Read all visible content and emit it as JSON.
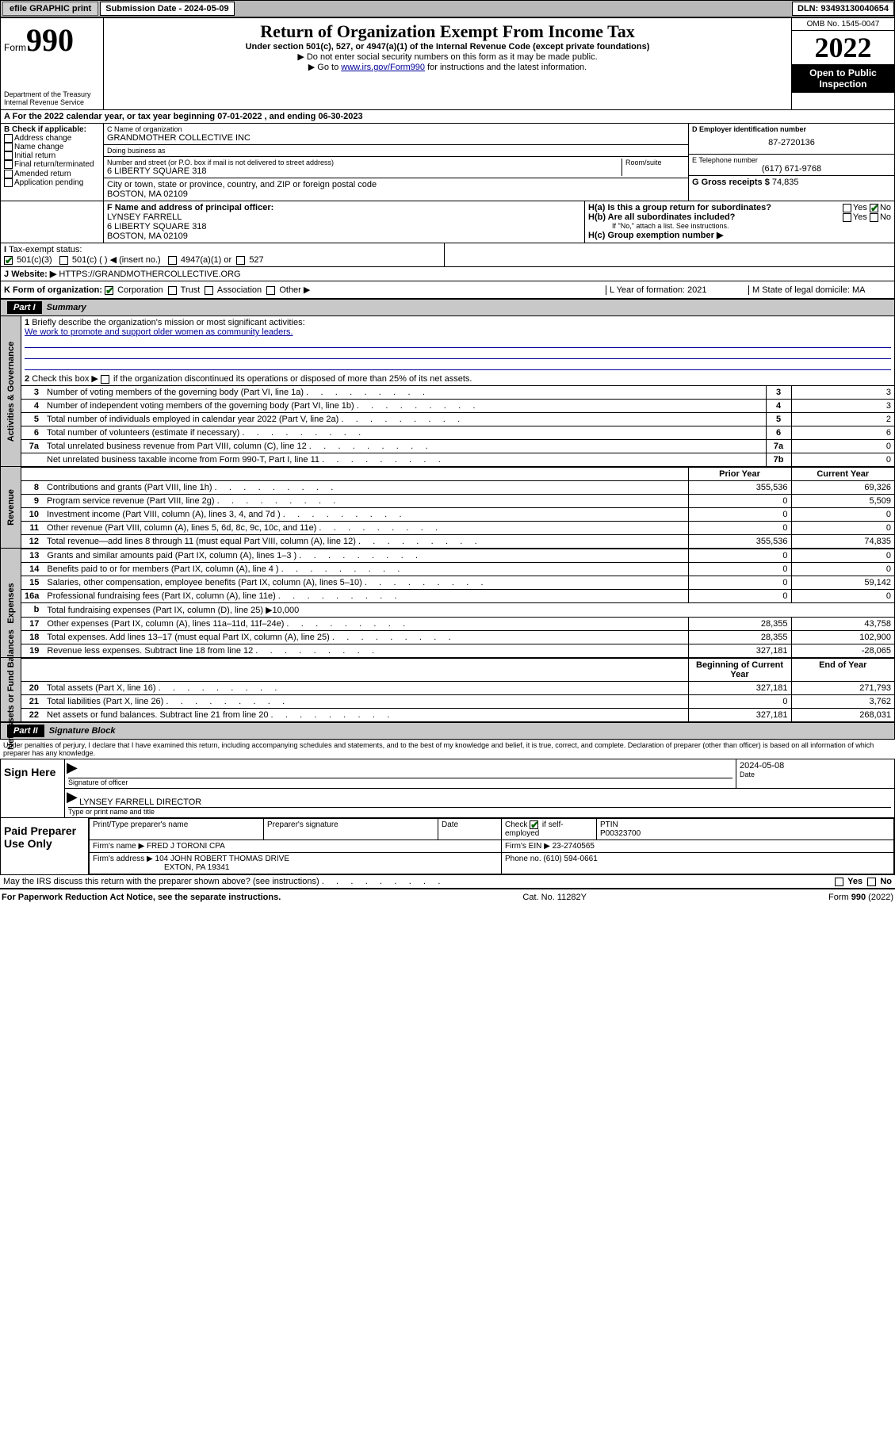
{
  "topbar": {
    "efile": "efile GRAPHIC print",
    "subdate_lbl": "Submission Date - 2024-05-09",
    "dln": "DLN: 93493130040654"
  },
  "header": {
    "form_word": "Form",
    "form_num": "990",
    "dept": "Department of the Treasury Internal Revenue Service",
    "title": "Return of Organization Exempt From Income Tax",
    "sub": "Under section 501(c), 527, or 4947(a)(1) of the Internal Revenue Code (except private foundations)",
    "note1": "▶ Do not enter social security numbers on this form as it may be made public.",
    "note2_pre": "▶ Go to ",
    "note2_link": "www.irs.gov/Form990",
    "note2_post": " for instructions and the latest information.",
    "omb": "OMB No. 1545-0047",
    "year": "2022",
    "open": "Open to Public Inspection"
  },
  "line_a": "For the 2022 calendar year, or tax year beginning 07-01-2022     , and ending 06-30-2023",
  "col_b": {
    "hdr": "B Check if applicable:",
    "items": [
      "Address change",
      "Name change",
      "Initial return",
      "Final return/terminated",
      "Amended return",
      "Application pending"
    ]
  },
  "col_c": {
    "name_lbl": "C Name of organization",
    "name": "GRANDMOTHER COLLECTIVE INC",
    "dba_lbl": "Doing business as",
    "dba": "",
    "street_lbl": "Number and street (or P.O. box if mail is not delivered to street address)",
    "room_lbl": "Room/suite",
    "street": "6 LIBERTY SQUARE 318",
    "city_lbl": "City or town, state or province, country, and ZIP or foreign postal code",
    "city": "BOSTON, MA  02109"
  },
  "col_d": {
    "ein_lbl": "D Employer identification number",
    "ein": "87-2720136",
    "phone_lbl": "E Telephone number",
    "phone": "(617) 671-9768",
    "gross_lbl": "G Gross receipts $",
    "gross": "74,835"
  },
  "line_f": {
    "lbl": "F  Name and address of principal officer:",
    "name": "LYNSEY FARRELL",
    "addr1": "6 LIBERTY SQUARE 318",
    "addr2": "BOSTON, MA  02109"
  },
  "line_h": {
    "ha": "H(a)  Is this a group return for subordinates?",
    "hb": "H(b)  Are all subordinates included?",
    "hb_note": "If \"No,\" attach a list. See instructions.",
    "hc": "H(c)  Group exemption number ▶",
    "yes": "Yes",
    "no": "No"
  },
  "line_i": {
    "lbl": "Tax-exempt status:",
    "c3": "501(c)(3)",
    "c": "501(c) (   ) ◀ (insert no.)",
    "a1": "4947(a)(1) or",
    "s527": "527"
  },
  "line_j": {
    "lbl": "Website: ▶",
    "val": "HTTPS://GRANDMOTHERCOLLECTIVE.ORG"
  },
  "line_k": {
    "lbl": "K Form of organization:",
    "corp": "Corporation",
    "trust": "Trust",
    "assoc": "Association",
    "other": "Other ▶"
  },
  "line_l": {
    "lbl": "L Year of formation: 2021"
  },
  "line_m": {
    "lbl": "M State of legal domicile: MA"
  },
  "part1": {
    "hdr": "Part I",
    "title": "Summary",
    "q1": "Briefly describe the organization's mission or most significant activities:",
    "mission": "We work to promote and support older women as community leaders.",
    "q2": "Check this box ▶",
    "q2b": "if the organization discontinued its operations or disposed of more than 25% of its net assets.",
    "rows_gov": [
      {
        "n": "3",
        "t": "Number of voting members of the governing body (Part VI, line 1a)",
        "l": "3",
        "v": "3"
      },
      {
        "n": "4",
        "t": "Number of independent voting members of the governing body (Part VI, line 1b)",
        "l": "4",
        "v": "3"
      },
      {
        "n": "5",
        "t": "Total number of individuals employed in calendar year 2022 (Part V, line 2a)",
        "l": "5",
        "v": "2"
      },
      {
        "n": "6",
        "t": "Total number of volunteers (estimate if necessary)",
        "l": "6",
        "v": "6"
      },
      {
        "n": "7a",
        "t": "Total unrelated business revenue from Part VIII, column (C), line 12",
        "l": "7a",
        "v": "0"
      },
      {
        "n": "",
        "t": "Net unrelated business taxable income from Form 990-T, Part I, line 11",
        "l": "7b",
        "v": "0"
      }
    ],
    "col_prior": "Prior Year",
    "col_curr": "Current Year",
    "rows_rev": [
      {
        "n": "8",
        "t": "Contributions and grants (Part VIII, line 1h)",
        "p": "355,536",
        "c": "69,326"
      },
      {
        "n": "9",
        "t": "Program service revenue (Part VIII, line 2g)",
        "p": "0",
        "c": "5,509"
      },
      {
        "n": "10",
        "t": "Investment income (Part VIII, column (A), lines 3, 4, and 7d )",
        "p": "0",
        "c": "0"
      },
      {
        "n": "11",
        "t": "Other revenue (Part VIII, column (A), lines 5, 6d, 8c, 9c, 10c, and 11e)",
        "p": "0",
        "c": "0"
      },
      {
        "n": "12",
        "t": "Total revenue—add lines 8 through 11 (must equal Part VIII, column (A), line 12)",
        "p": "355,536",
        "c": "74,835"
      }
    ],
    "rows_exp": [
      {
        "n": "13",
        "t": "Grants and similar amounts paid (Part IX, column (A), lines 1–3 )",
        "p": "0",
        "c": "0"
      },
      {
        "n": "14",
        "t": "Benefits paid to or for members (Part IX, column (A), line 4 )",
        "p": "0",
        "c": "0"
      },
      {
        "n": "15",
        "t": "Salaries, other compensation, employee benefits (Part IX, column (A), lines 5–10)",
        "p": "0",
        "c": "59,142"
      },
      {
        "n": "16a",
        "t": "Professional fundraising fees (Part IX, column (A), line 11e)",
        "p": "0",
        "c": "0"
      },
      {
        "n": "b",
        "t": "Total fundraising expenses (Part IX, column (D), line 25) ▶10,000",
        "p": "",
        "c": ""
      },
      {
        "n": "17",
        "t": "Other expenses (Part IX, column (A), lines 11a–11d, 11f–24e)",
        "p": "28,355",
        "c": "43,758"
      },
      {
        "n": "18",
        "t": "Total expenses. Add lines 13–17 (must equal Part IX, column (A), line 25)",
        "p": "28,355",
        "c": "102,900"
      },
      {
        "n": "19",
        "t": "Revenue less expenses. Subtract line 18 from line 12",
        "p": "327,181",
        "c": "-28,065"
      }
    ],
    "col_beg": "Beginning of Current Year",
    "col_end": "End of Year",
    "rows_net": [
      {
        "n": "20",
        "t": "Total assets (Part X, line 16)",
        "p": "327,181",
        "c": "271,793"
      },
      {
        "n": "21",
        "t": "Total liabilities (Part X, line 26)",
        "p": "0",
        "c": "3,762"
      },
      {
        "n": "22",
        "t": "Net assets or fund balances. Subtract line 21 from line 20",
        "p": "327,181",
        "c": "268,031"
      }
    ],
    "vtabs": {
      "gov": "Activities & Governance",
      "rev": "Revenue",
      "exp": "Expenses",
      "net": "Net Assets or Fund Balances"
    }
  },
  "part2": {
    "hdr": "Part II",
    "title": "Signature Block",
    "decl": "Under penalties of perjury, I declare that I have examined this return, including accompanying schedules and statements, and to the best of my knowledge and belief, it is true, correct, and complete. Declaration of preparer (other than officer) is based on all information of which preparer has any knowledge.",
    "sign_here": "Sign Here",
    "sig_officer": "Signature of officer",
    "sig_date": "2024-05-08",
    "date_lbl": "Date",
    "officer_name": "LYNSEY FARRELL  DIRECTOR",
    "officer_lbl": "Type or print name and title",
    "paid": "Paid Preparer Use Only",
    "pp_name_lbl": "Print/Type preparer's name",
    "pp_sig_lbl": "Preparer's signature",
    "pp_date_lbl": "Date",
    "pp_check": "Check",
    "pp_self": "if self-employed",
    "ptin_lbl": "PTIN",
    "ptin": "P00323700",
    "firm_name_lbl": "Firm's name    ▶",
    "firm_name": "FRED J TORONI CPA",
    "firm_ein_lbl": "Firm's EIN ▶",
    "firm_ein": "23-2740565",
    "firm_addr_lbl": "Firm's address ▶",
    "firm_addr1": "104 JOHN ROBERT THOMAS DRIVE",
    "firm_addr2": "EXTON, PA  19341",
    "firm_phone_lbl": "Phone no.",
    "firm_phone": "(610) 594-0661",
    "discuss": "May the IRS discuss this return with the preparer shown above? (see instructions)"
  },
  "footer": {
    "left": "For Paperwork Reduction Act Notice, see the separate instructions.",
    "mid": "Cat. No. 11282Y",
    "right": "Form 990 (2022)"
  }
}
